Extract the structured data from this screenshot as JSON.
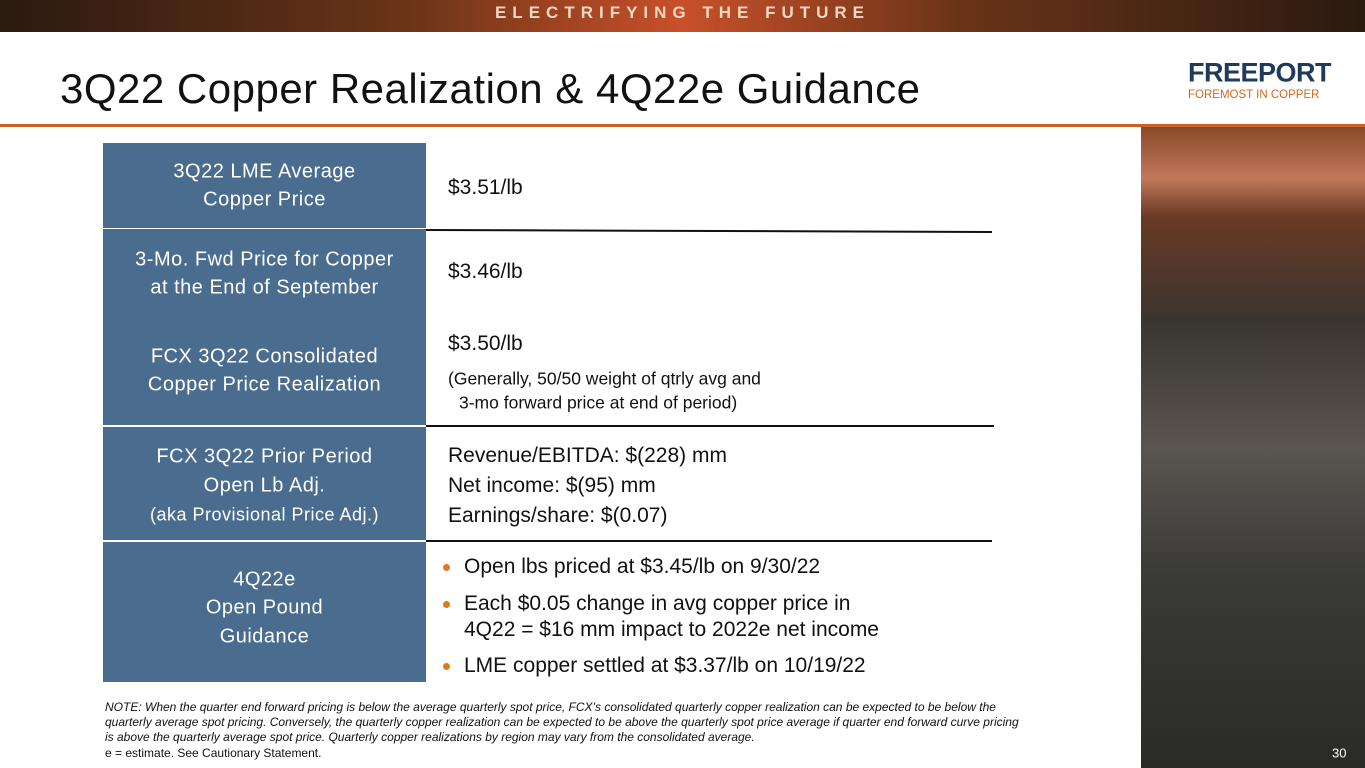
{
  "banner": "ELECTRIFYING THE FUTURE",
  "title": "3Q22 Copper Realization & 4Q22e Guidance",
  "logo": {
    "name": "FREEPORT",
    "tagline": "FOREMOST IN COPPER"
  },
  "rows": [
    {
      "label": [
        "3Q22 LME Average",
        "Copper Price"
      ],
      "content": [
        "$3.51/lb"
      ]
    },
    {
      "label": [
        "3-Mo. Fwd Price for Copper",
        "at the End of September"
      ],
      "content": [
        "$3.46/lb"
      ]
    },
    {
      "label": [
        "FCX 3Q22 Consolidated",
        "Copper Price Realization"
      ],
      "content": [
        "$3.50/lb"
      ],
      "note": [
        "(Generally, 50/50 weight of qtrly avg and",
        "3-mo forward price at end of period)"
      ]
    },
    {
      "label": [
        "FCX 3Q22 Prior Period",
        "Open Lb Adj.",
        "(aka Provisional Price Adj.)"
      ],
      "content": [
        "Revenue/EBITDA: $(228) mm",
        "Net income: $(95) mm",
        "Earnings/share: $(0.07)"
      ]
    },
    {
      "label": [
        "4Q22e",
        "Open Pound",
        "Guidance"
      ],
      "bullets": [
        [
          "Open lbs priced at $3.45/lb on 9/30/22"
        ],
        [
          "Each $0.05 change in avg copper price in",
          "4Q22 = $16 mm impact to 2022e net income"
        ],
        [
          "LME copper settled at $3.37/lb on 10/19/22"
        ]
      ]
    }
  ],
  "footnote": [
    "NOTE: When the quarter end forward pricing is below the average quarterly spot price, FCX’s consolidated quarterly copper realization can be expected to be below the",
    "quarterly average spot pricing. Conversely, the quarterly copper realization can be expected to be above the quarterly spot price average if quarter end forward curve pricing",
    "is above the quarterly average spot price. Quarterly copper realizations by region may vary from the consolidated average.",
    "e = estimate. See Cautionary Statement."
  ],
  "page_number": "30"
}
